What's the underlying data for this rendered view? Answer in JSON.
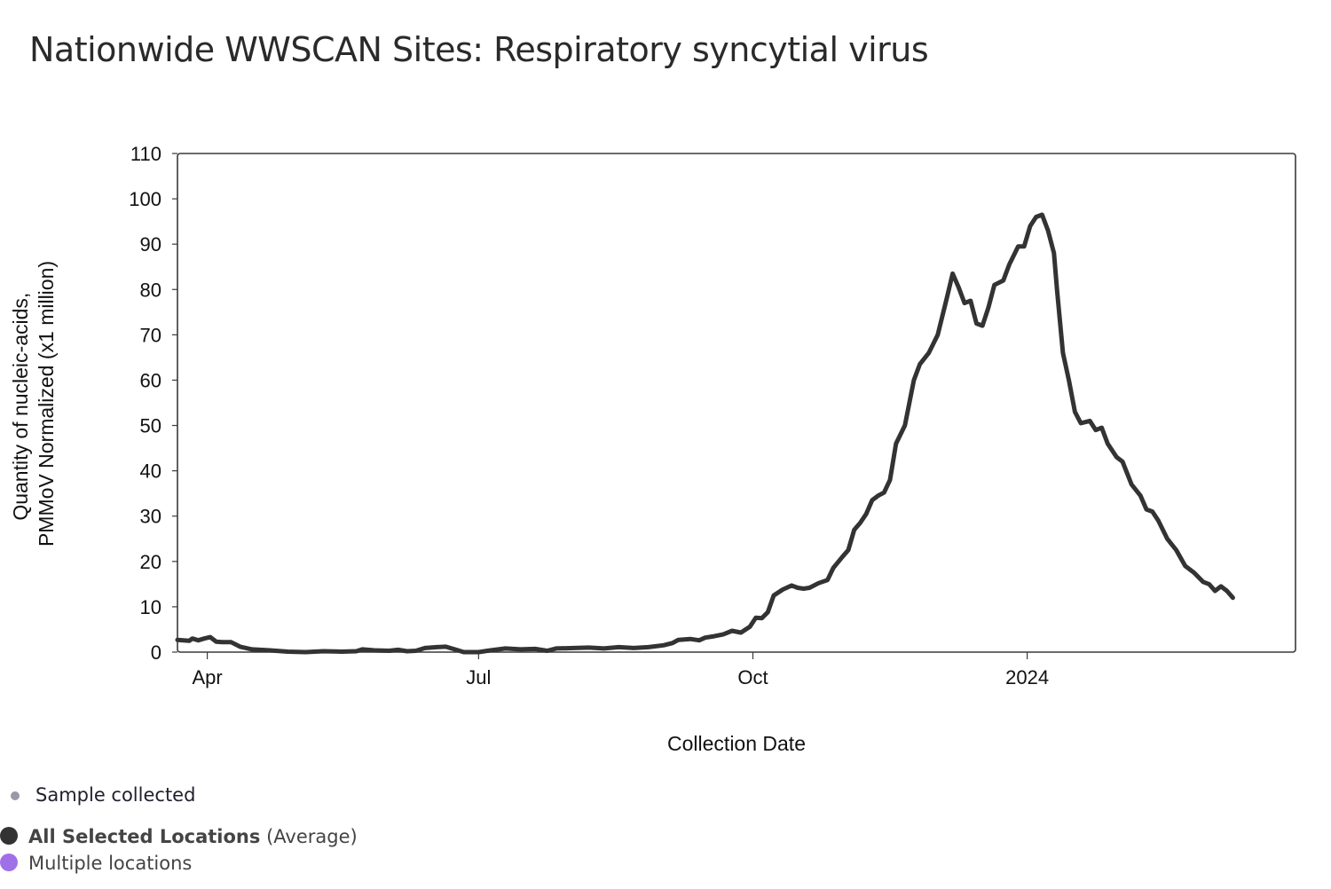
{
  "title": "Nationwide WWSCAN Sites: Respiratory syncytial virus",
  "chart_data": {
    "type": "line",
    "title": "Nationwide WWSCAN Sites: Respiratory syncytial virus",
    "xlabel": "Collection Date",
    "ylabel_line1": "Quantity of nucleic-acids,",
    "ylabel_line2": "PMMoV Normalized (x1 million)",
    "ylim": [
      0,
      110
    ],
    "yticks": [
      0,
      10,
      20,
      30,
      40,
      50,
      60,
      70,
      80,
      90,
      100,
      110
    ],
    "xlim": [
      "2023-03-22",
      "2024-03-31"
    ],
    "xticks": [
      {
        "date": "2023-04-01",
        "label": "Apr"
      },
      {
        "date": "2023-07-01",
        "label": "Jul"
      },
      {
        "date": "2023-10-01",
        "label": "Oct"
      },
      {
        "date": "2024-01-01",
        "label": "2024"
      }
    ],
    "series": [
      {
        "name": "All Selected Locations (Average)",
        "color": "#333333",
        "points": [
          [
            "2023-03-22",
            2.7
          ],
          [
            "2023-03-24",
            2.6
          ],
          [
            "2023-03-26",
            2.5
          ],
          [
            "2023-03-27",
            3.0
          ],
          [
            "2023-03-29",
            2.6
          ],
          [
            "2023-03-31",
            3.0
          ],
          [
            "2023-04-02",
            3.3
          ],
          [
            "2023-04-04",
            2.3
          ],
          [
            "2023-04-06",
            2.2
          ],
          [
            "2023-04-09",
            2.2
          ],
          [
            "2023-04-12",
            1.2
          ],
          [
            "2023-04-16",
            0.6
          ],
          [
            "2023-04-22",
            0.4
          ],
          [
            "2023-04-28",
            0.1
          ],
          [
            "2023-05-04",
            0.0
          ],
          [
            "2023-05-10",
            0.2
          ],
          [
            "2023-05-16",
            0.1
          ],
          [
            "2023-05-21",
            0.2
          ],
          [
            "2023-05-23",
            0.6
          ],
          [
            "2023-05-27",
            0.4
          ],
          [
            "2023-06-01",
            0.3
          ],
          [
            "2023-06-04",
            0.5
          ],
          [
            "2023-06-07",
            0.2
          ],
          [
            "2023-06-10",
            0.3
          ],
          [
            "2023-06-13",
            0.9
          ],
          [
            "2023-06-17",
            1.1
          ],
          [
            "2023-06-20",
            1.2
          ],
          [
            "2023-06-23",
            0.6
          ],
          [
            "2023-06-26",
            0.0
          ],
          [
            "2023-07-01",
            0.0
          ],
          [
            "2023-07-05",
            0.4
          ],
          [
            "2023-07-10",
            0.8
          ],
          [
            "2023-07-15",
            0.6
          ],
          [
            "2023-07-20",
            0.7
          ],
          [
            "2023-07-24",
            0.3
          ],
          [
            "2023-07-27",
            0.8
          ],
          [
            "2023-08-02",
            0.9
          ],
          [
            "2023-08-07",
            1.0
          ],
          [
            "2023-08-12",
            0.8
          ],
          [
            "2023-08-17",
            1.1
          ],
          [
            "2023-08-22",
            0.9
          ],
          [
            "2023-08-27",
            1.1
          ],
          [
            "2023-09-01",
            1.5
          ],
          [
            "2023-09-04",
            2.0
          ],
          [
            "2023-09-06",
            2.7
          ],
          [
            "2023-09-10",
            2.9
          ],
          [
            "2023-09-13",
            2.6
          ],
          [
            "2023-09-15",
            3.2
          ],
          [
            "2023-09-18",
            3.5
          ],
          [
            "2023-09-21",
            3.9
          ],
          [
            "2023-09-24",
            4.7
          ],
          [
            "2023-09-27",
            4.3
          ],
          [
            "2023-09-30",
            5.6
          ],
          [
            "2023-10-02",
            7.6
          ],
          [
            "2023-10-04",
            7.5
          ],
          [
            "2023-10-06",
            8.8
          ],
          [
            "2023-10-08",
            12.5
          ],
          [
            "2023-10-11",
            13.8
          ],
          [
            "2023-10-14",
            14.7
          ],
          [
            "2023-10-16",
            14.2
          ],
          [
            "2023-10-18",
            14.0
          ],
          [
            "2023-10-20",
            14.2
          ],
          [
            "2023-10-23",
            15.2
          ],
          [
            "2023-10-26",
            15.9
          ],
          [
            "2023-10-28",
            18.6
          ],
          [
            "2023-10-31",
            21.0
          ],
          [
            "2023-11-02",
            22.5
          ],
          [
            "2023-11-04",
            27.0
          ],
          [
            "2023-11-06",
            28.5
          ],
          [
            "2023-11-08",
            30.5
          ],
          [
            "2023-11-10",
            33.5
          ],
          [
            "2023-11-12",
            34.5
          ],
          [
            "2023-11-14",
            35.2
          ],
          [
            "2023-11-16",
            38.0
          ],
          [
            "2023-11-18",
            46.0
          ],
          [
            "2023-11-21",
            50.0
          ],
          [
            "2023-11-24",
            60.0
          ],
          [
            "2023-11-26",
            63.5
          ],
          [
            "2023-11-29",
            66.0
          ],
          [
            "2023-12-02",
            70.0
          ],
          [
            "2023-12-05",
            78.0
          ],
          [
            "2023-12-07",
            83.5
          ],
          [
            "2023-12-09",
            80.5
          ],
          [
            "2023-12-11",
            77.0
          ],
          [
            "2023-12-13",
            77.5
          ],
          [
            "2023-12-15",
            72.5
          ],
          [
            "2023-12-17",
            72.0
          ],
          [
            "2023-12-19",
            76.0
          ],
          [
            "2023-12-21",
            81.0
          ],
          [
            "2023-12-24",
            82.0
          ],
          [
            "2023-12-26",
            85.5
          ],
          [
            "2023-12-29",
            89.5
          ],
          [
            "2023-12-31",
            89.5
          ],
          [
            "2024-01-02",
            94.0
          ],
          [
            "2024-01-04",
            96.0
          ],
          [
            "2024-01-06",
            96.5
          ],
          [
            "2024-01-08",
            93.0
          ],
          [
            "2024-01-10",
            88.0
          ],
          [
            "2024-01-11",
            80.0
          ],
          [
            "2024-01-13",
            66.0
          ],
          [
            "2024-01-15",
            60.0
          ],
          [
            "2024-01-17",
            53.0
          ],
          [
            "2024-01-19",
            50.5
          ],
          [
            "2024-01-22",
            51.0
          ],
          [
            "2024-01-24",
            49.0
          ],
          [
            "2024-01-26",
            49.5
          ],
          [
            "2024-01-28",
            46.0
          ],
          [
            "2024-01-31",
            43.0
          ],
          [
            "2024-02-02",
            42.0
          ],
          [
            "2024-02-05",
            37.0
          ],
          [
            "2024-02-08",
            34.5
          ],
          [
            "2024-02-10",
            31.5
          ],
          [
            "2024-02-12",
            31.0
          ],
          [
            "2024-02-14",
            29.0
          ],
          [
            "2024-02-17",
            25.0
          ],
          [
            "2024-02-20",
            22.5
          ],
          [
            "2024-02-23",
            19.0
          ],
          [
            "2024-02-26",
            17.5
          ],
          [
            "2024-02-29",
            15.5
          ],
          [
            "2024-03-02",
            15.0
          ],
          [
            "2024-03-04",
            13.5
          ],
          [
            "2024-03-06",
            14.5
          ],
          [
            "2024-03-08",
            13.5
          ],
          [
            "2024-03-10",
            12.0
          ]
        ]
      }
    ]
  },
  "legend": {
    "sample_collected": "Sample collected",
    "all_selected_bold": "All Selected Locations",
    "all_selected_suffix": " (Average)",
    "multiple_locations": "Multiple locations",
    "colors": {
      "sample": "#9a9aa6",
      "average": "#333333",
      "multiple": "#a070e8"
    }
  }
}
